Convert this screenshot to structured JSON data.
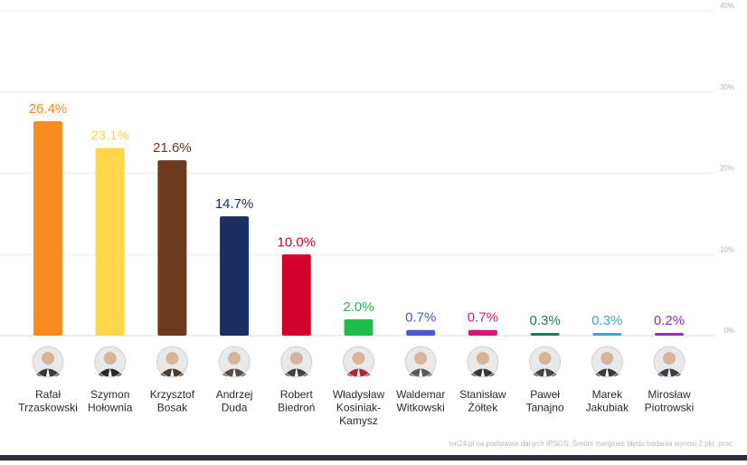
{
  "chart_data": {
    "type": "bar",
    "categories": [
      [
        "Rafał",
        "Trzaskowski"
      ],
      [
        "Szymon",
        "Hołownia"
      ],
      [
        "Krzysztof",
        "Bosak"
      ],
      [
        "Andrzej",
        "Duda"
      ],
      [
        "Robert",
        "Biedroń"
      ],
      [
        "Władysław",
        "Kosiniak-",
        "Kamysz"
      ],
      [
        "Waldemar",
        "Witkowski"
      ],
      [
        "Stanisław",
        "Żółtek"
      ],
      [
        "Paweł",
        "Tanajno"
      ],
      [
        "Marek",
        "Jakubiak"
      ],
      [
        "Mirosław",
        "Piotrowski"
      ]
    ],
    "values": [
      26.4,
      23.1,
      21.6,
      14.7,
      10.0,
      2.0,
      0.7,
      0.7,
      0.3,
      0.3,
      0.2
    ],
    "value_labels": [
      "26.4%",
      "23.1%",
      "21.6%",
      "14.7%",
      "10.0%",
      "2.0%",
      "0.7%",
      "0.7%",
      "0.3%",
      "0.3%",
      "0.2%"
    ],
    "colors": [
      "#f98a1f",
      "#ffd54a",
      "#6e3a1f",
      "#1b2e63",
      "#d2002a",
      "#1fbc49",
      "#4a58d8",
      "#d8147a",
      "#1a7a5c",
      "#3aa6dc",
      "#9a2bbf"
    ],
    "avatar_tones": [
      "#3d3a36",
      "#27292c",
      "#4b3a2e",
      "#5a4a44",
      "#47423d",
      "#b2253a",
      "#58575a",
      "#3a3735",
      "#4a4540",
      "#3c3a38",
      "#3b3e44"
    ],
    "y_ticks": [
      "0%",
      "10%",
      "20%",
      "30%",
      "40%"
    ],
    "ylim": [
      0,
      40
    ],
    "grid": true,
    "note": "tvn24.pl na podstawie danych IPSOS. Średni margines błędu badania wynosi 2 pkt. proc."
  }
}
